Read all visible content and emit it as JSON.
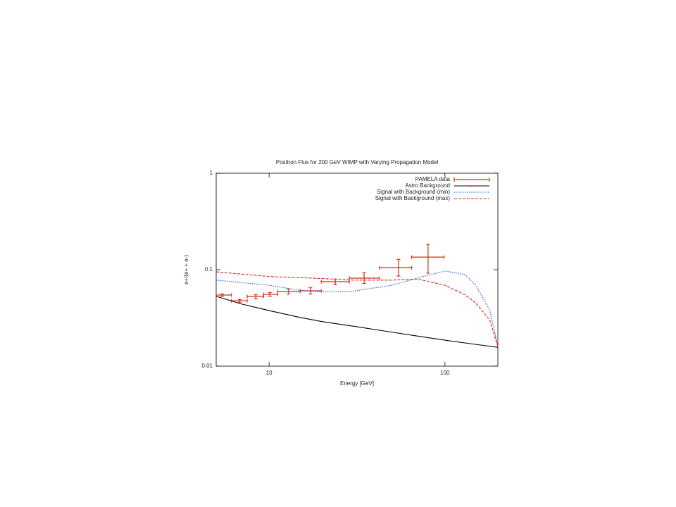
{
  "chart_data": {
    "type": "line",
    "title": "Positron Flux for 200 GeV WIMP with Varying Propagation Model",
    "xlabel": "Energy [GeV]",
    "ylabel": "e+/(e+ + e-)",
    "xscale": "log",
    "yscale": "log",
    "xlim": [
      5,
      200
    ],
    "ylim": [
      0.01,
      1
    ],
    "xticks": [
      10,
      100
    ],
    "yticks": [
      0.01,
      0.1,
      1
    ],
    "legend": "top-right",
    "series": [
      {
        "name": "PAMELA data",
        "kind": "errorbar",
        "color": "#d03010",
        "x": [
          5.4,
          6.8,
          8.4,
          10.1,
          12.9,
          17.2,
          23.8,
          34.7,
          54.5,
          80.2
        ],
        "values": [
          0.0546,
          0.0477,
          0.0528,
          0.0555,
          0.0594,
          0.0604,
          0.0751,
          0.0817,
          0.105,
          0.135
        ],
        "x_low": [
          5.0,
          6.1,
          7.5,
          9.3,
          11.2,
          15.0,
          19.8,
          28.6,
          42.4,
          64.7
        ],
        "x_high": [
          6.1,
          7.5,
          9.3,
          11.2,
          15.0,
          19.8,
          28.6,
          42.4,
          64.7,
          99
        ],
        "y_low": [
          0.053,
          0.046,
          0.05,
          0.053,
          0.056,
          0.056,
          0.07,
          0.072,
          0.086,
          0.092
        ],
        "y_high": [
          0.056,
          0.049,
          0.055,
          0.058,
          0.063,
          0.065,
          0.08,
          0.093,
          0.128,
          0.183
        ]
      },
      {
        "name": "Astro Background",
        "color": "#000000",
        "dash": "solid",
        "x": [
          5,
          7,
          10,
          15,
          20,
          30,
          50,
          70,
          100,
          150,
          200
        ],
        "values": [
          0.053,
          0.044,
          0.0377,
          0.032,
          0.029,
          0.026,
          0.0225,
          0.0205,
          0.0186,
          0.0168,
          0.0157
        ]
      },
      {
        "name": "Signal with Background (min)",
        "color": "#3050e0",
        "dash": "dotted",
        "x": [
          5,
          10,
          15,
          20,
          30,
          50,
          70,
          100,
          130,
          150,
          180,
          200
        ],
        "values": [
          0.078,
          0.069,
          0.061,
          0.059,
          0.06,
          0.069,
          0.082,
          0.097,
          0.089,
          0.069,
          0.038,
          0.016
        ]
      },
      {
        "name": "Signal with Background (max)",
        "color": "#e02020",
        "dash": "dashed",
        "x": [
          5,
          10,
          20,
          30,
          50,
          70,
          100,
          130,
          150,
          180,
          200
        ],
        "values": [
          0.095,
          0.085,
          0.081,
          0.078,
          0.078,
          0.08,
          0.069,
          0.055,
          0.045,
          0.03,
          0.016
        ]
      }
    ]
  }
}
